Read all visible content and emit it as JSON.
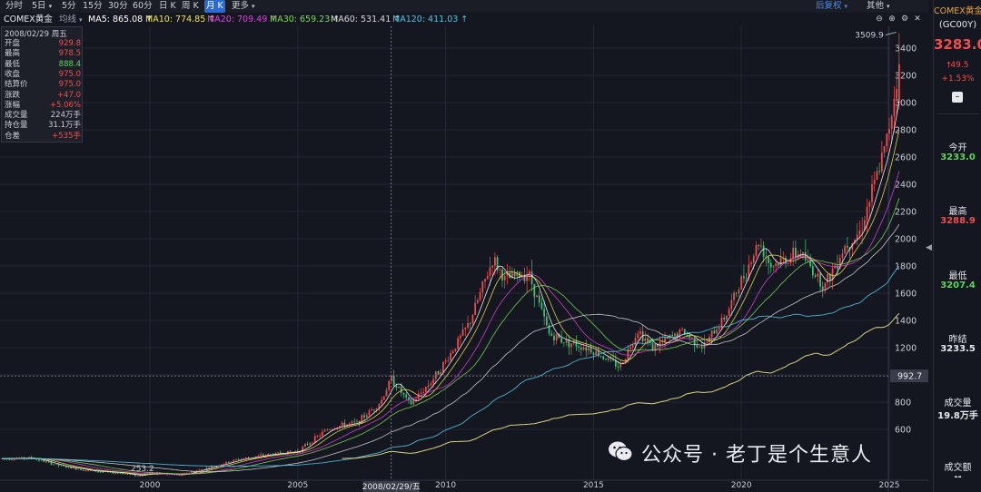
{
  "toolbar": {
    "periods": [
      "分时",
      "5日",
      "5分",
      "15分",
      "30分",
      "60分",
      "日 K",
      "周 K",
      "月 K",
      "更多"
    ],
    "active_period": "月 K",
    "adjust": "后复权",
    "other": "其他"
  },
  "ma_bar": {
    "instrument": "COMEX黄金",
    "indicator": "均线",
    "lines": [
      {
        "label": "MA5: 865.08 ↑",
        "color": "#ffffff"
      },
      {
        "label": "MA10: 774.85 ↑",
        "color": "#f0e442"
      },
      {
        "label": "MA20: 709.49 ↑",
        "color": "#e040e0"
      },
      {
        "label": "MA30: 659.23 ↑",
        "color": "#7ddc55"
      },
      {
        "label": "MA60: 531.41 ↑",
        "color": "#d7d7d7"
      },
      {
        "label": "MA120: 411.03 ↑",
        "color": "#4fc3e0"
      }
    ]
  },
  "info_box": {
    "date": "2008/02/29 周五",
    "rows": [
      {
        "k": "开盘",
        "v": "929.8",
        "color": "#ef4d4d"
      },
      {
        "k": "最高",
        "v": "978.5",
        "color": "#ef4d4d"
      },
      {
        "k": "最低",
        "v": "888.4",
        "color": "#5bd65b"
      },
      {
        "k": "收盘",
        "v": "975.0",
        "color": "#ef4d4d"
      },
      {
        "k": "结算价",
        "v": "975.0",
        "color": "#ef4d4d"
      },
      {
        "k": "涨跌",
        "v": "+47.0",
        "color": "#ef4d4d"
      },
      {
        "k": "涨幅",
        "v": "+5.06%",
        "color": "#ef4d4d"
      },
      {
        "k": "成交量",
        "v": "224万手",
        "color": "#c9cdd6"
      },
      {
        "k": "持仓量",
        "v": "31.1万手",
        "color": "#c9cdd6"
      },
      {
        "k": "仓差",
        "v": "+535手",
        "color": "#ef4d4d"
      }
    ]
  },
  "right_panel": {
    "name": "COMEX黄金",
    "code": "(GC00Y)",
    "price": "3283.0",
    "change": "49.5",
    "change_pct": "+1.53%",
    "open_label": "今开",
    "open": "3233.0",
    "high_label": "最高",
    "high": "3288.9",
    "low_label": "最低",
    "low": "3207.4",
    "prev_label": "昨结",
    "prev": "3233.5",
    "vol_label": "成交量",
    "vol": "19.8万手",
    "amount_label": "成交额",
    "amount": "--"
  },
  "watermark": "公众号 · 老丁是个生意人",
  "crosshair": {
    "price_label": "992.7",
    "date_label": "2008/02/29/五",
    "price": 992.7,
    "year": 2008.16
  },
  "chart_data": {
    "type": "candlestick",
    "x_axis": {
      "ticks": [
        2000,
        2005,
        2010,
        2015,
        2020,
        2025
      ],
      "range": [
        1995,
        2025.9
      ]
    },
    "y_axis": {
      "ticks": [
        600,
        800,
        1000,
        1200,
        1400,
        1600,
        1800,
        2000,
        2200,
        2400,
        2600,
        2800,
        3000,
        3200,
        3400
      ],
      "range": [
        350,
        3600
      ]
    },
    "annotations": [
      {
        "text": "3509.9",
        "x": 2025.3,
        "y": 3509.9
      },
      {
        "text": "253.2",
        "x": 1999.6,
        "y": 253.2
      }
    ],
    "price_path": [
      [
        1995.0,
        385
      ],
      [
        1996.0,
        390
      ],
      [
        1997.0,
        330
      ],
      [
        1998.0,
        295
      ],
      [
        1999.0,
        280
      ],
      [
        1999.6,
        260
      ],
      [
        2000.0,
        280
      ],
      [
        2001.0,
        265
      ],
      [
        2002.0,
        320
      ],
      [
        2003.0,
        380
      ],
      [
        2004.0,
        415
      ],
      [
        2005.0,
        440
      ],
      [
        2006.0,
        600
      ],
      [
        2006.5,
        630
      ],
      [
        2007.0,
        650
      ],
      [
        2007.8,
        800
      ],
      [
        2008.16,
        975
      ],
      [
        2008.8,
        780
      ],
      [
        2009.5,
        950
      ],
      [
        2010.0,
        1100
      ],
      [
        2010.8,
        1380
      ],
      [
        2011.6,
        1850
      ],
      [
        2012.0,
        1700
      ],
      [
        2012.8,
        1750
      ],
      [
        2013.5,
        1300
      ],
      [
        2014.0,
        1250
      ],
      [
        2014.8,
        1200
      ],
      [
        2015.9,
        1060
      ],
      [
        2016.5,
        1330
      ],
      [
        2017.0,
        1200
      ],
      [
        2018.0,
        1320
      ],
      [
        2018.7,
        1200
      ],
      [
        2019.5,
        1450
      ],
      [
        2020.6,
        1980
      ],
      [
        2021.0,
        1800
      ],
      [
        2022.0,
        1900
      ],
      [
        2022.8,
        1650
      ],
      [
        2023.5,
        1950
      ],
      [
        2024.0,
        2050
      ],
      [
        2024.5,
        2400
      ],
      [
        2024.9,
        2700
      ],
      [
        2025.2,
        3100
      ],
      [
        2025.35,
        3300
      ]
    ],
    "series": [
      {
        "name": "MA5",
        "color": "#ffffff",
        "width": 0.8,
        "lag": 0.4,
        "smooth": 0.4,
        "start": 1995.0
      },
      {
        "name": "MA10",
        "color": "#f0e442",
        "width": 0.8,
        "lag": 0.8,
        "smooth": 0.7,
        "start": 1995.0
      },
      {
        "name": "MA20",
        "color": "#e040e0",
        "width": 0.8,
        "lag": 1.6,
        "smooth": 1.4,
        "start": 1995.0
      },
      {
        "name": "MA30",
        "color": "#7ddc55",
        "width": 0.8,
        "lag": 2.4,
        "smooth": 2.0,
        "start": 1995.0
      },
      {
        "name": "MA60",
        "color": "#d7d7d7",
        "width": 0.8,
        "lag": 4.8,
        "smooth": 4.0,
        "start": 1995.0
      },
      {
        "name": "MA120",
        "color": "#4fc3e0",
        "width": 0.9,
        "lag": 9.0,
        "smooth": 7.0,
        "start": 1995.0
      },
      {
        "name": "MA250",
        "color": "#f0e68c",
        "width": 1.0,
        "lag": 20.0,
        "smooth": 15.0,
        "start": 2006.5
      }
    ]
  }
}
